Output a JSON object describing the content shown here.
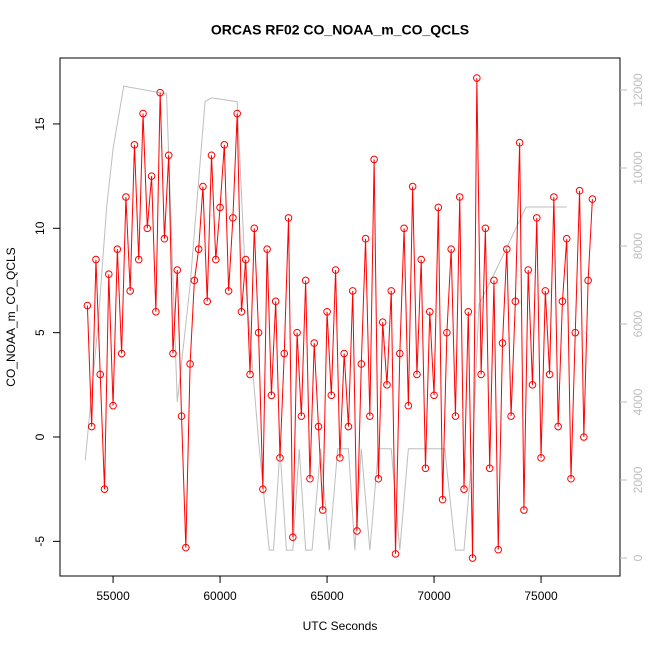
{
  "chart_data": {
    "type": "line",
    "title": "ORCAS RF02 CO_NOAA_m_CO_QCLS",
    "x_label": "UTC Seconds",
    "y_label": "CO_NOAA_m_CO_QCLS",
    "xlim": [
      52520,
      78690
    ],
    "ylim": [
      -6.66,
      18.16
    ],
    "y2lim": [
      -462,
      12821
    ],
    "xticks": [
      55000,
      60000,
      65000,
      70000,
      75000
    ],
    "yticks": [
      -5,
      0,
      5,
      10,
      15
    ],
    "y2ticks": [
      0,
      2000,
      4000,
      6000,
      8000,
      10000,
      12000
    ],
    "series": [
      {
        "color": "#ff0000",
        "markers": true,
        "x": [
          53800,
          54000,
          54200,
          54400,
          54600,
          54800,
          55000,
          55200,
          55400,
          55600,
          55800,
          56000,
          56200,
          56400,
          56600,
          56800,
          57000,
          57200,
          57400,
          57600,
          57800,
          58000,
          58200,
          58400,
          58600,
          58800,
          59000,
          59200,
          59400,
          59600,
          59800,
          60000,
          60200,
          60400,
          60600,
          60800,
          61000,
          61200,
          61400,
          61600,
          61800,
          62000,
          62200,
          62400,
          62600,
          62800,
          63000,
          63200,
          63400,
          63600,
          63800,
          64000,
          64200,
          64400,
          64600,
          64800,
          65000,
          65200,
          65400,
          65600,
          65800,
          66000,
          66200,
          66400,
          66600,
          66800,
          67000,
          67200,
          67400,
          67600,
          67800,
          68000,
          68200,
          68400,
          68600,
          68800,
          69000,
          69200,
          69400,
          69600,
          69800,
          70000,
          70200,
          70400,
          70600,
          70800,
          71000,
          71200,
          71400,
          71600,
          71800,
          72000,
          72200,
          72400,
          72600,
          72800,
          73000,
          73200,
          73400,
          73600,
          73800,
          74000,
          74200,
          74400,
          74600,
          74800,
          75000,
          75200,
          75400,
          75600,
          75800,
          76000,
          76200,
          76400,
          76600,
          76800,
          77000,
          77200,
          77400
        ],
        "values": [
          6.3,
          0.5,
          8.5,
          3.0,
          -2.5,
          7.8,
          1.5,
          9.0,
          4.0,
          11.5,
          7.0,
          14.0,
          8.5,
          15.5,
          10.0,
          12.5,
          6.0,
          16.5,
          9.5,
          13.5,
          4.0,
          8.0,
          1.0,
          -5.3,
          3.5,
          7.5,
          9.0,
          12.0,
          6.5,
          13.5,
          8.5,
          11.0,
          14.0,
          7.0,
          10.5,
          15.5,
          6.0,
          8.5,
          3.0,
          10.0,
          5.0,
          -2.5,
          9.0,
          2.0,
          6.5,
          -1.0,
          4.0,
          10.5,
          -4.8,
          5.0,
          1.0,
          7.5,
          -2.0,
          4.5,
          0.5,
          -3.5,
          6.0,
          2.0,
          8.0,
          -1.0,
          4.0,
          0.5,
          7.0,
          -4.5,
          3.5,
          9.5,
          1.0,
          13.3,
          -2.0,
          5.5,
          2.5,
          7.0,
          -5.6,
          4.0,
          10.0,
          1.5,
          12.0,
          3.0,
          8.5,
          -1.5,
          6.0,
          2.0,
          11.0,
          -3.0,
          5.0,
          9.0,
          1.0,
          11.5,
          -2.5,
          6.0,
          -5.8,
          17.2,
          3.0,
          10.0,
          -1.5,
          7.5,
          -5.4,
          4.5,
          9.0,
          1.0,
          6.5,
          14.1,
          -3.5,
          8.0,
          2.5,
          10.5,
          -1.0,
          7.0,
          3.0,
          11.5,
          0.5,
          6.5,
          9.5,
          -2.0,
          5.0,
          11.8,
          0.0,
          7.5,
          11.4
        ]
      },
      {
        "color": "#bebebe",
        "axis": "y2",
        "markers": false,
        "x": [
          53700,
          54300,
          54700,
          55000,
          55500,
          57500,
          58000,
          58600,
          59300,
          59600,
          60800,
          61200,
          61800,
          62300,
          62500,
          62800,
          63100,
          63400,
          63700,
          64000,
          64300,
          64700,
          65100,
          65500,
          66000,
          66300,
          66600,
          67000,
          67400,
          68000,
          68400,
          68800,
          70500,
          71000,
          71400,
          71800,
          72100,
          73000,
          74300,
          76200
        ],
        "values": [
          2500,
          6000,
          9000,
          10500,
          12100,
          11900,
          4000,
          7000,
          11700,
          11800,
          11700,
          7000,
          3000,
          200,
          200,
          2800,
          200,
          200,
          2800,
          200,
          200,
          2800,
          200,
          2800,
          2800,
          200,
          2800,
          200,
          2800,
          2800,
          200,
          2800,
          2800,
          200,
          200,
          2800,
          6500,
          7500,
          9000,
          9000
        ]
      }
    ]
  }
}
